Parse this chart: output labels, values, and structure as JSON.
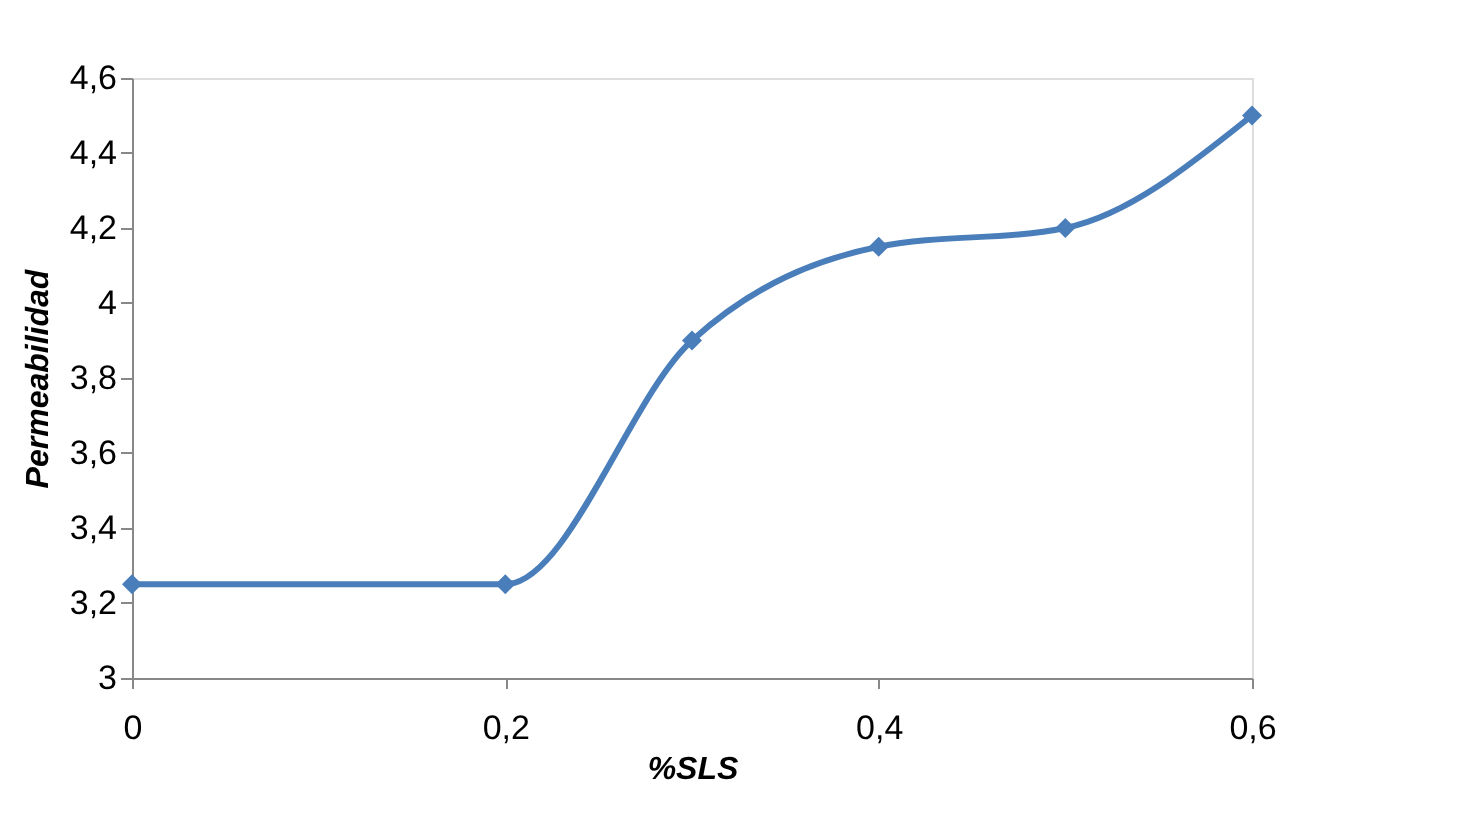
{
  "chart_data": {
    "type": "line",
    "xlabel": "%SLS",
    "ylabel": "Permeabilidad",
    "x": [
      0,
      0.2,
      0.3,
      0.4,
      0.5,
      0.6
    ],
    "series": [
      {
        "color": "#4a7ebb",
        "values": [
          3.25,
          3.25,
          3.9,
          4.15,
          4.2,
          4.5
        ]
      }
    ],
    "xlim": [
      0,
      0.6
    ],
    "xticks": [
      0,
      {
        "value": 0.2,
        "label": "0,2"
      },
      {
        "value": 0.4,
        "label": "0,4"
      },
      {
        "value": 0.6,
        "label": "0,6"
      }
    ],
    "ylim": [
      3,
      4.6
    ],
    "yticks": [
      3,
      {
        "value": 3.2,
        "label": "3,2"
      },
      {
        "value": 3.4,
        "label": "3,4"
      },
      {
        "value": 3.6,
        "label": "3,6"
      },
      {
        "value": 3.8,
        "label": "3,8"
      },
      4,
      {
        "value": 4.2,
        "label": "4,2"
      },
      {
        "value": 4.4,
        "label": "4,4"
      },
      {
        "value": 4.6,
        "label": "4,6"
      }
    ],
    "grid": false,
    "marker": "diamond",
    "line_style": "solid"
  }
}
